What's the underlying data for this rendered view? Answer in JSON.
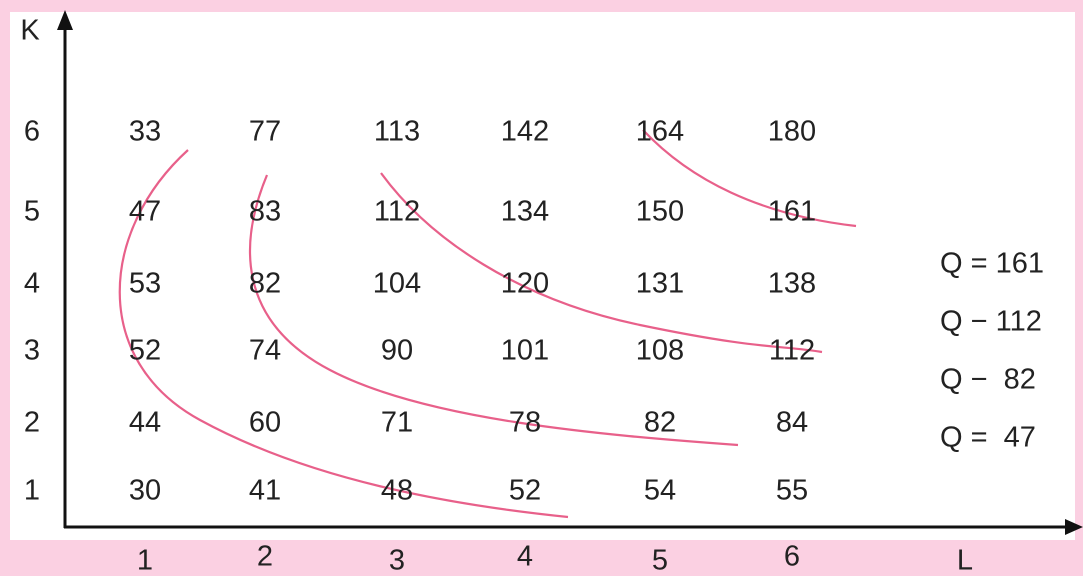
{
  "axes": {
    "y_label": "K",
    "x_label": "L",
    "y_ticks": [
      "6",
      "5",
      "4",
      "3",
      "2",
      "1"
    ],
    "x_ticks": [
      "1",
      "2",
      "3",
      "4",
      "5",
      "6"
    ]
  },
  "table": {
    "rows": [
      [
        "33",
        "77",
        "113",
        "142",
        "164",
        "180"
      ],
      [
        "47",
        "83",
        "112",
        "134",
        "150",
        "161"
      ],
      [
        "53",
        "82",
        "104",
        "120",
        "131",
        "138"
      ],
      [
        "52",
        "74",
        "90",
        "101",
        "108",
        "112"
      ],
      [
        "44",
        "60",
        "71",
        "78",
        "82",
        "84"
      ],
      [
        "30",
        "41",
        "48",
        "52",
        "54",
        "55"
      ]
    ]
  },
  "legend": [
    "Q = 161",
    "Q − 112",
    "Q −  82",
    "Q =  47"
  ]
}
